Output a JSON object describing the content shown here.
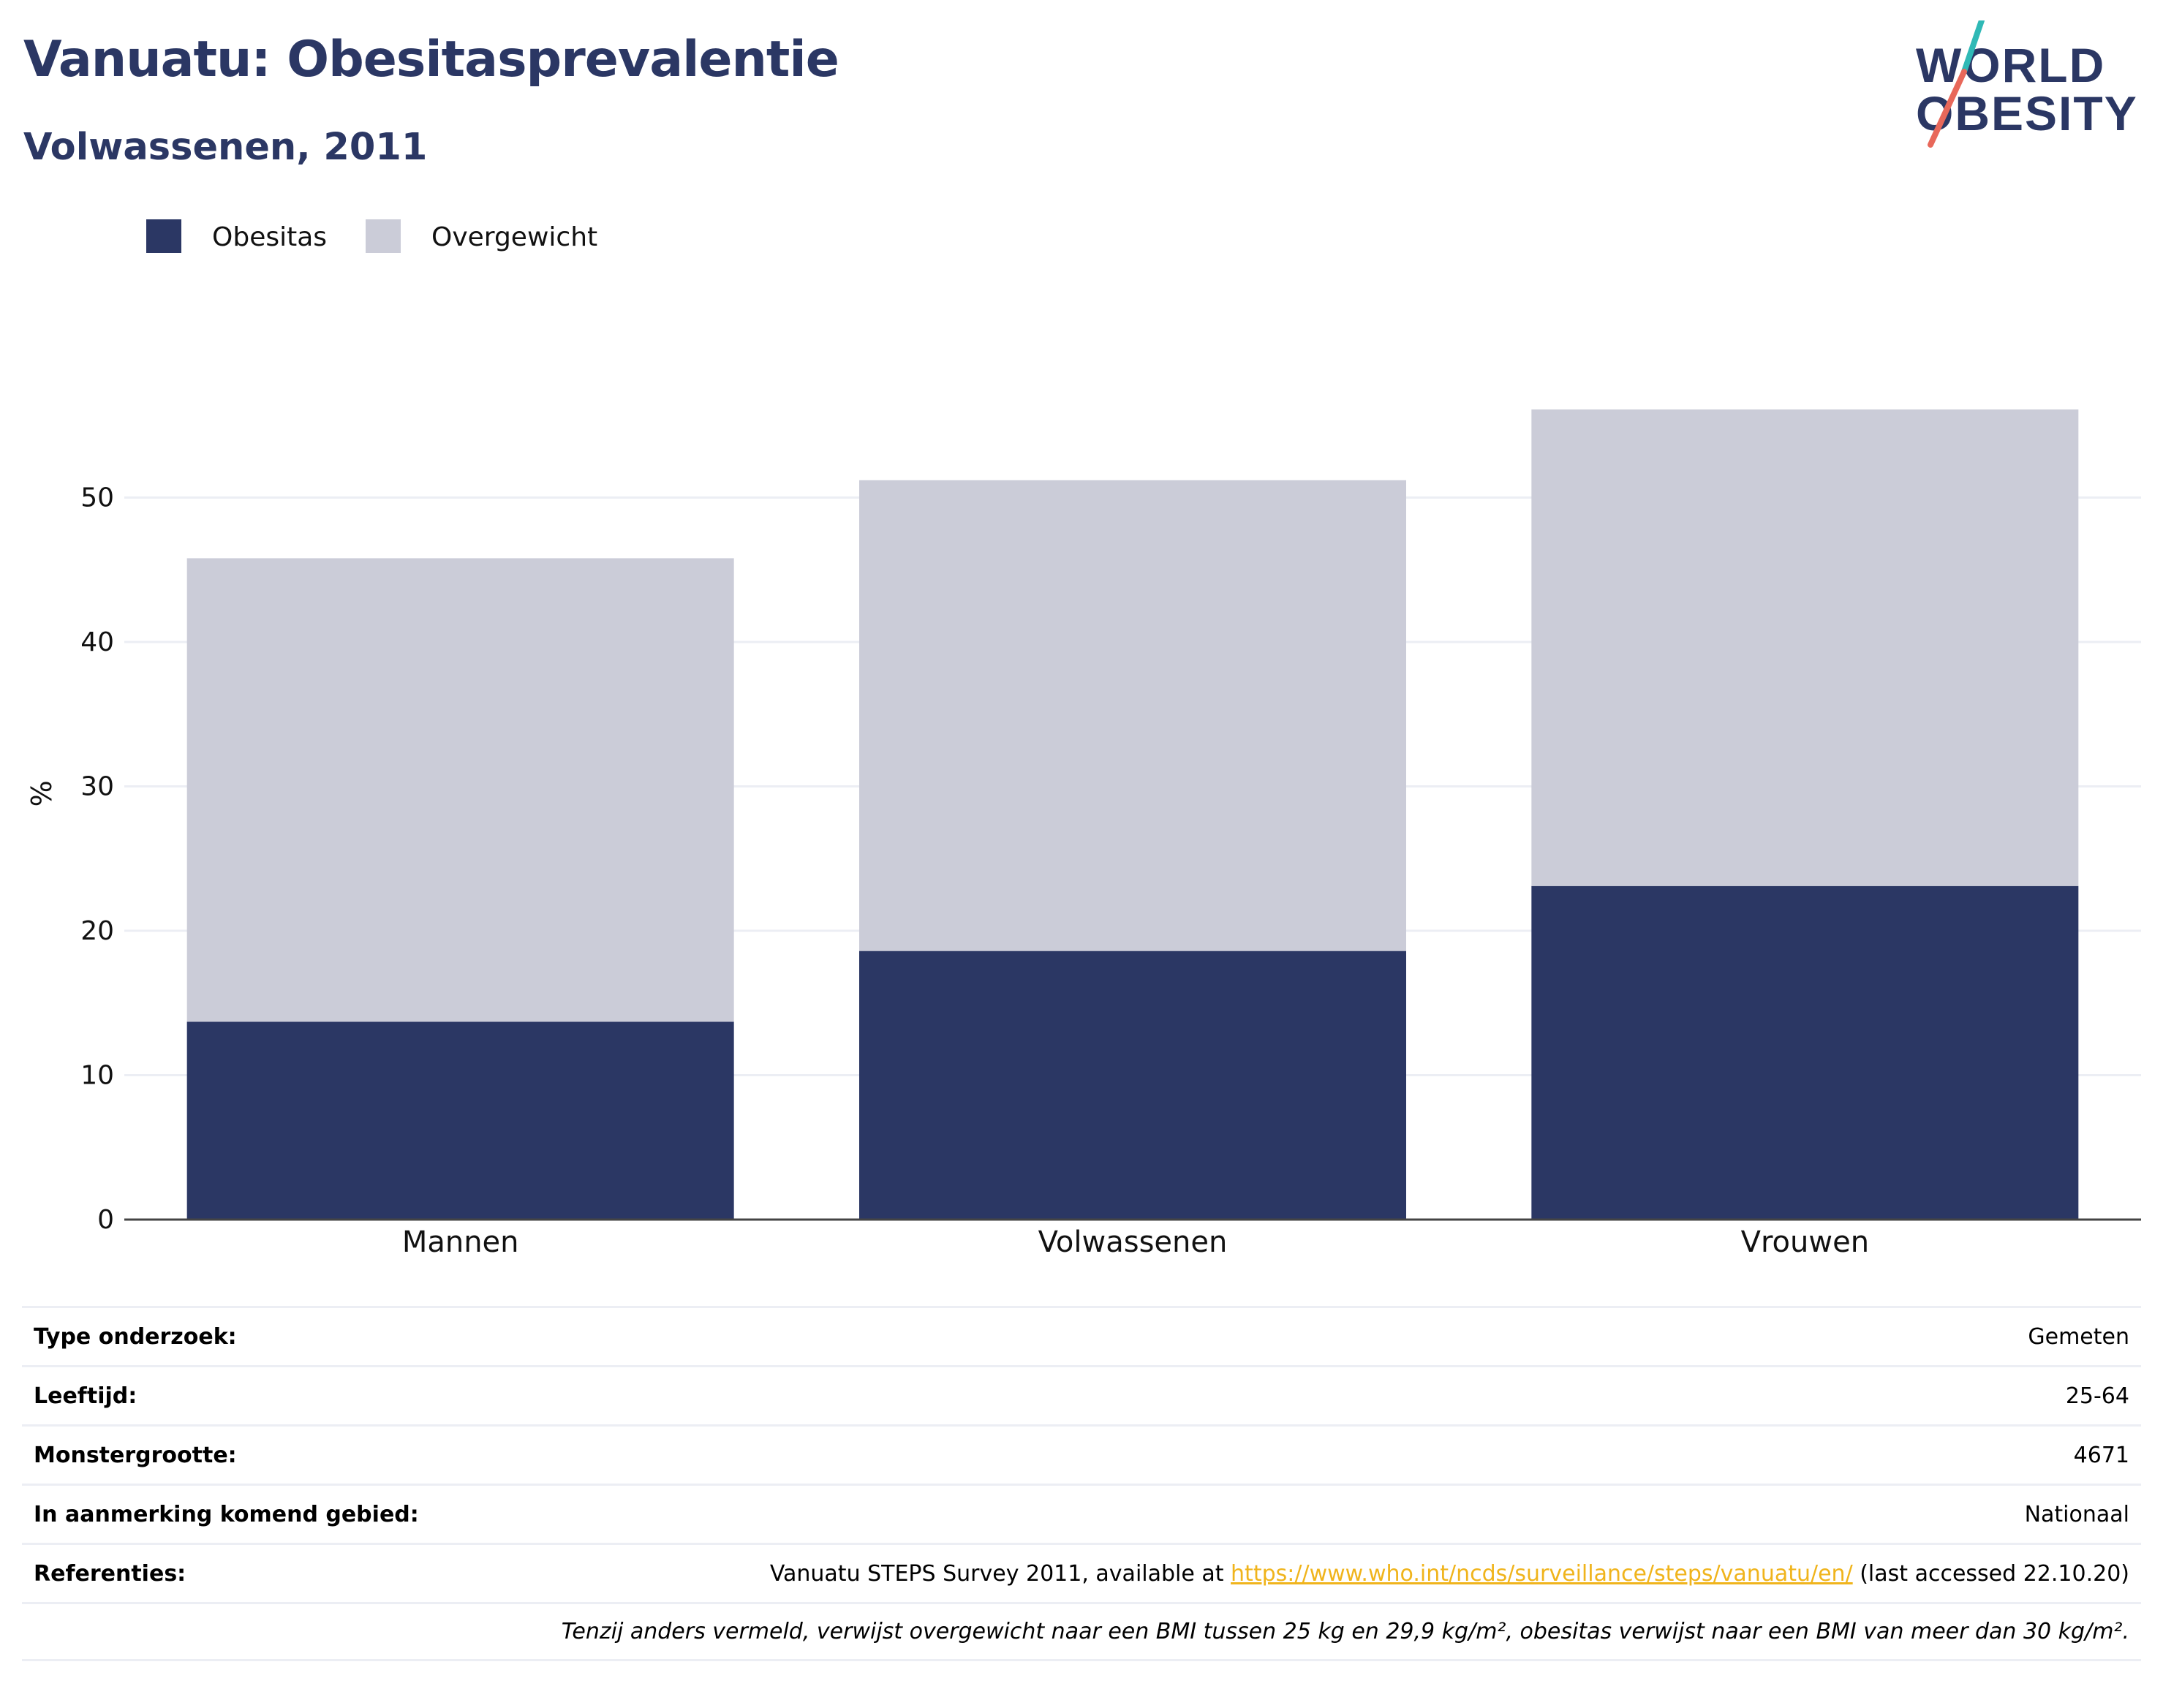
{
  "title": "Vanuatu: Obesitasprevalentie",
  "subtitle": "Volwassenen, 2011",
  "logo": {
    "line1": "WORLD",
    "line2": "OBESITY"
  },
  "colors": {
    "obesitas": "#2b3764",
    "overgewicht": "#cbccd8",
    "accent_teal": "#2fb9b6",
    "accent_red": "#e8685a"
  },
  "chart_data": {
    "type": "bar",
    "stacked": true,
    "categories": [
      "Mannen",
      "Volwassenen",
      "Vrouwen"
    ],
    "series": [
      {
        "name": "Obesitas",
        "values": [
          13.7,
          18.6,
          23.1
        ]
      },
      {
        "name": "Overgewicht",
        "values": [
          32.1,
          32.6,
          33.0
        ]
      }
    ],
    "ylabel": "%",
    "ylim": [
      0,
      58
    ],
    "yticks": [
      0,
      10,
      20,
      30,
      40,
      50
    ],
    "grid": true,
    "legend": "top-left"
  },
  "info": {
    "rows": [
      {
        "label": "Type onderzoek:",
        "value": "Gemeten"
      },
      {
        "label": "Leeftijd:",
        "value": "25-64"
      },
      {
        "label": "Monstergrootte:",
        "value": "4671"
      },
      {
        "label": "In aanmerking komend gebied:",
        "value": "Nationaal"
      }
    ],
    "ref_label": "Referenties:",
    "ref_prefix": "Vanuatu STEPS Survey 2011, available at ",
    "ref_link": "https://www.who.int/ncds/surveillance/steps/vanuatu/en/",
    "ref_suffix": " (last accessed 22.10.20)",
    "note": "Tenzij anders vermeld, verwijst overgewicht naar een BMI tussen 25 kg en 29,9 kg/m², obesitas verwijst naar een BMI van meer dan 30 kg/m²."
  }
}
